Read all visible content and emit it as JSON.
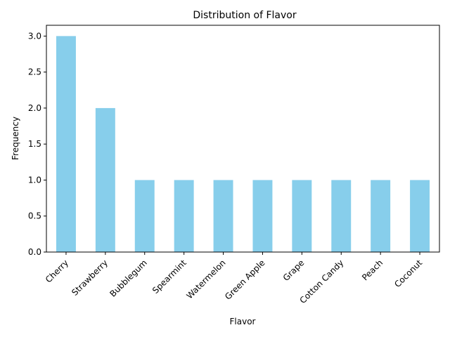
{
  "chart_data": {
    "type": "bar",
    "title": "Distribution of Flavor",
    "xlabel": "Flavor",
    "ylabel": "Frequency",
    "categories": [
      "Cherry",
      "Strawberry",
      "Bubblegum",
      "Spearmint",
      "Watermelon",
      "Green Apple",
      "Grape",
      "Cotton Candy",
      "Peach",
      "Coconut"
    ],
    "values": [
      3,
      2,
      1,
      1,
      1,
      1,
      1,
      1,
      1,
      1
    ],
    "ylim": [
      0,
      3.15
    ],
    "yticks": [
      "0.0",
      "0.5",
      "1.0",
      "1.5",
      "2.0",
      "2.5",
      "3.0"
    ],
    "bar_color": "#87CEEB",
    "grid": false,
    "legend": "none"
  }
}
